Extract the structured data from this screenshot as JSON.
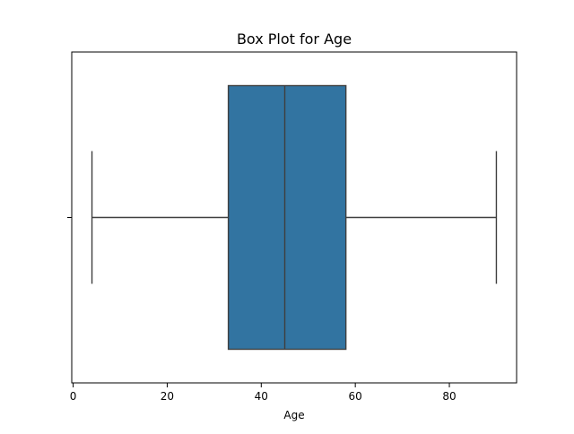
{
  "chart_data": {
    "type": "box",
    "title": "Box Plot for Age",
    "xlabel": "Age",
    "ylabel": "",
    "orientation": "horizontal",
    "xlim": [
      -0.3,
      94.3
    ],
    "x_ticks": [
      0,
      20,
      40,
      60,
      80
    ],
    "y_ticks": [
      ""
    ],
    "grid": false,
    "legend": "none",
    "box": {
      "whisker_low": 4,
      "q1": 33,
      "median": 45,
      "q3": 58,
      "whisker_high": 90
    },
    "colors": {
      "box_fill": "#3274a1",
      "line": "#3f3f3f",
      "axes": "#000000"
    }
  }
}
